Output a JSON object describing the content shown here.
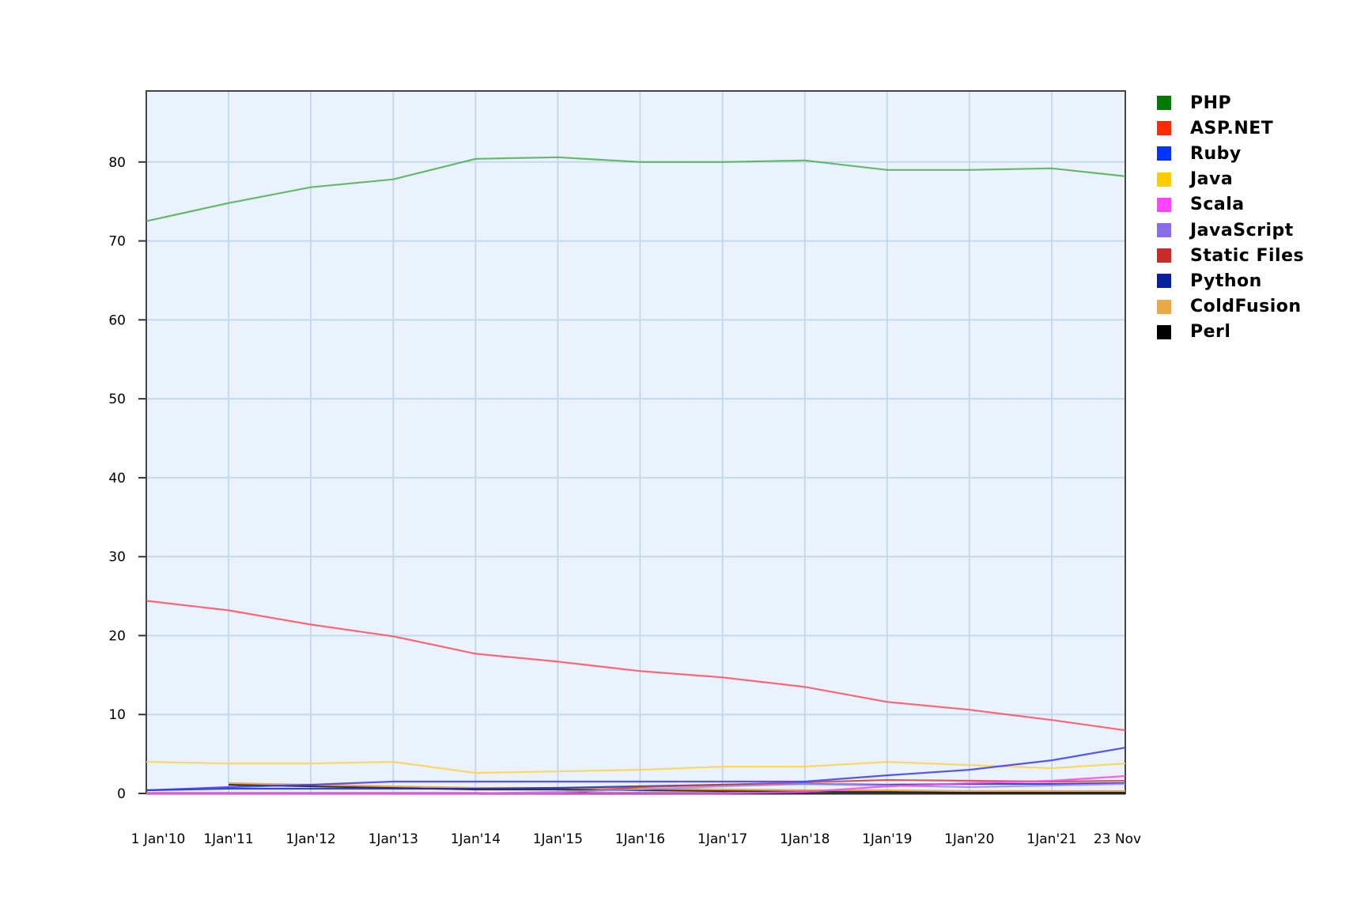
{
  "chart_data": {
    "type": "line",
    "title": "",
    "xlabel": "",
    "ylabel": "",
    "x": [
      "2010-01-01",
      "2011-01-01",
      "2012-01-01",
      "2013-01-01",
      "2014-01-01",
      "2015-01-01",
      "2016-01-01",
      "2017-01-01",
      "2018-01-01",
      "2019-01-01",
      "2020-01-01",
      "2021-01-01",
      "2021-11-23"
    ],
    "x_tick_labels": [
      "1 Jan'10",
      "1Jan'11",
      "1Jan'12",
      "1Jan'13",
      "1Jan'14",
      "1Jan'15",
      "1Jan'16",
      "1Jan'17",
      "1Jan'18",
      "1Jan'19",
      "1Jan'20",
      "1Jan'21",
      "23 Nov"
    ],
    "ylim": [
      0,
      89
    ],
    "y_ticks": [
      0,
      10,
      20,
      30,
      40,
      50,
      60,
      70,
      80
    ],
    "grid": true,
    "legend_placement": "right",
    "plot_background": "#eaf2fd",
    "series": [
      {
        "name": "PHP",
        "color": "#007a00",
        "line_color": "#4caf50",
        "values": [
          72.5,
          74.8,
          76.8,
          77.8,
          80.4,
          80.6,
          80.0,
          80.0,
          80.2,
          79.0,
          79.0,
          79.2,
          78.2
        ]
      },
      {
        "name": "ASP.NET",
        "color": "#ff2a00",
        "line_color": "#ff4d5e",
        "values": [
          24.4,
          23.2,
          21.4,
          19.9,
          17.7,
          16.7,
          15.5,
          14.7,
          13.5,
          11.6,
          10.6,
          9.3,
          8.0
        ]
      },
      {
        "name": "Ruby",
        "color": "#0033ff",
        "line_color": "#3b3bf0",
        "values": [
          0.4,
          0.8,
          1.1,
          1.5,
          1.5,
          1.5,
          1.5,
          1.5,
          1.5,
          2.3,
          3.0,
          4.2,
          5.8
        ]
      },
      {
        "name": "Java",
        "color": "#ffcc00",
        "line_color": "#ffd24d",
        "values": [
          4.0,
          3.8,
          3.8,
          4.0,
          2.6,
          2.8,
          3.0,
          3.4,
          3.4,
          4.0,
          3.6,
          3.2,
          3.8
        ]
      },
      {
        "name": "Scala",
        "color": "#ff44ff",
        "line_color": "#ff44ee",
        "values": [
          0,
          0,
          0,
          0,
          0,
          0,
          0,
          0,
          0.2,
          0.9,
          1.3,
          1.6,
          2.2
        ]
      },
      {
        "name": "JavaScript",
        "color": "#8a6be8",
        "line_color": "#a08cf0",
        "values": [
          0,
          0,
          0,
          0,
          0,
          0.2,
          0.5,
          0.9,
          1.2,
          1.0,
          0.8,
          1.0,
          1.2
        ]
      },
      {
        "name": "Static Files",
        "color": "#cc2a2a",
        "line_color": "#d04040",
        "values": [
          0,
          0,
          0,
          0,
          0,
          0,
          0.8,
          1.1,
          1.4,
          1.7,
          1.6,
          1.5,
          1.6
        ]
      },
      {
        "name": "Python",
        "color": "#0a1fa0",
        "line_color": "#1a2ac0",
        "values": [
          0.4,
          0.6,
          0.6,
          0.6,
          0.6,
          0.7,
          0.9,
          1.1,
          1.2,
          1.1,
          1.2,
          1.2,
          1.3
        ]
      },
      {
        "name": "ColdFusion",
        "color": "#eba846",
        "line_color": "#f09a30",
        "values": [
          null,
          1.3,
          1.1,
          0.9,
          0.7,
          0.7,
          0.6,
          0.5,
          0.4,
          0.4,
          0.3,
          0.3,
          0.3
        ]
      },
      {
        "name": "Perl",
        "color": "#000000",
        "line_color": "#111111",
        "values": [
          null,
          1.1,
          0.9,
          0.7,
          0.5,
          0.5,
          0.4,
          0.3,
          0.3,
          0.2,
          0.1,
          0.1,
          0.1
        ]
      }
    ]
  }
}
